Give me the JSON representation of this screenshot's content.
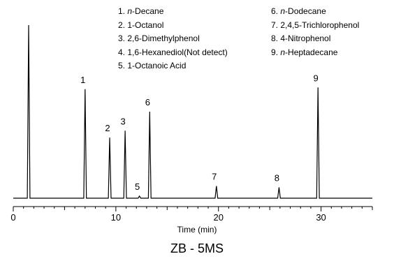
{
  "chart_data": {
    "type": "line",
    "title": "",
    "xlabel": "Time (min)",
    "ylabel": "",
    "xlim": [
      0,
      35
    ],
    "xticks": [
      0,
      10,
      20,
      30
    ],
    "grid": false,
    "legend": {
      "placement": "top",
      "left": [
        {
          "num": "1. ",
          "italic": "n",
          "rest": "-Decane"
        },
        {
          "num": "2. ",
          "italic": "",
          "rest": "1-Octanol"
        },
        {
          "num": "3. ",
          "italic": "",
          "rest": "2,6-Dimethylphenol"
        },
        {
          "num": "4. ",
          "italic": "",
          "rest": "1,6-Hexanediol(Not detect)"
        },
        {
          "num": "5. ",
          "italic": "",
          "rest": "1-Octanoic Acid"
        }
      ],
      "right": [
        {
          "num": "6. ",
          "italic": "n",
          "rest": "-Dodecane"
        },
        {
          "num": "7. ",
          "italic": "",
          "rest": "2,4,5-Trichlorophenol"
        },
        {
          "num": "8. ",
          "italic": "",
          "rest": "4-Nitrophenol"
        },
        {
          "num": "9. ",
          "italic": "n",
          "rest": "-Heptadecane"
        }
      ]
    },
    "peaks": [
      {
        "label": "",
        "time": 1.5,
        "height": 1.0
      },
      {
        "label": "1",
        "time": 7.0,
        "height": 0.63
      },
      {
        "label": "2",
        "time": 9.4,
        "height": 0.35
      },
      {
        "label": "3",
        "time": 10.9,
        "height": 0.39
      },
      {
        "label": "5",
        "time": 12.3,
        "height": 0.012
      },
      {
        "label": "6",
        "time": 13.3,
        "height": 0.5
      },
      {
        "label": "7",
        "time": 19.8,
        "height": 0.07
      },
      {
        "label": "8",
        "time": 25.9,
        "height": 0.063
      },
      {
        "label": "9",
        "time": 29.7,
        "height": 0.64
      }
    ],
    "caption": "ZB - 5MS",
    "line_color": "#000000"
  }
}
